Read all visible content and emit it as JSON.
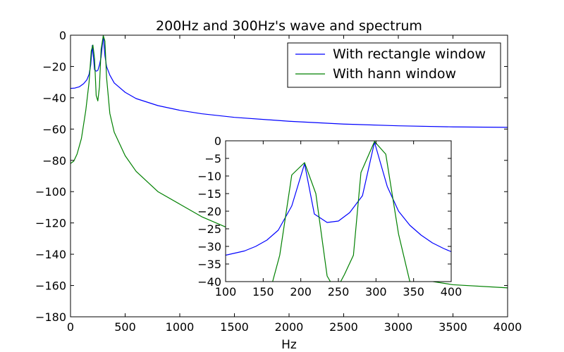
{
  "chart_data": [
    {
      "type": "line",
      "title": "200Hz and 300Hz's wave and spectrum",
      "xlabel": "Hz",
      "ylabel": "",
      "xlim": [
        0,
        4000
      ],
      "ylim": [
        -180,
        0
      ],
      "xticks": [
        "0",
        "500",
        "1000",
        "1500",
        "2000",
        "2500",
        "3000",
        "3500",
        "4000"
      ],
      "yticks": [
        "0",
        "−20",
        "−40",
        "−60",
        "−80",
        "−100",
        "−120",
        "−140",
        "−160",
        "−180"
      ],
      "legend_position": "top-right",
      "series": [
        {
          "name": "With rectangle window",
          "color": "#0000ff",
          "points": [
            [
              0,
              -34
            ],
            [
              40,
              -33.8
            ],
            [
              80,
              -33
            ],
            [
              120,
              -31
            ],
            [
              150,
              -28.5
            ],
            [
              170,
              -25
            ],
            [
              185,
              -19
            ],
            [
              200,
              -6.5
            ],
            [
              210,
              -14
            ],
            [
              220,
              -22
            ],
            [
              235,
              -23
            ],
            [
              250,
              -22.5
            ],
            [
              265,
              -19
            ],
            [
              280,
              -14
            ],
            [
              300,
              -0.5
            ],
            [
              315,
              -13
            ],
            [
              330,
              -20
            ],
            [
              360,
              -25.5
            ],
            [
              400,
              -30.5
            ],
            [
              500,
              -36.5
            ],
            [
              600,
              -40.5
            ],
            [
              800,
              -45
            ],
            [
              1000,
              -48
            ],
            [
              1200,
              -50.2
            ],
            [
              1500,
              -52.5
            ],
            [
              2000,
              -55
            ],
            [
              2500,
              -56.8
            ],
            [
              3000,
              -57.9
            ],
            [
              3500,
              -58.6
            ],
            [
              4000,
              -58.9
            ]
          ]
        },
        {
          "name": "With hann window",
          "color": "#008000",
          "points": [
            [
              0,
              -82
            ],
            [
              30,
              -80.5
            ],
            [
              60,
              -76
            ],
            [
              100,
              -66
            ],
            [
              140,
              -48
            ],
            [
              170,
              -30
            ],
            [
              190,
              -10
            ],
            [
              205,
              -6.3
            ],
            [
              220,
              -15
            ],
            [
              235,
              -38.5
            ],
            [
              250,
              -42
            ],
            [
              265,
              -33
            ],
            [
              280,
              -9
            ],
            [
              300,
              -0.3
            ],
            [
              315,
              -3.8
            ],
            [
              330,
              -27
            ],
            [
              360,
              -50
            ],
            [
              400,
              -62
            ],
            [
              500,
              -77
            ],
            [
              600,
              -87
            ],
            [
              800,
              -100
            ],
            [
              1000,
              -108
            ],
            [
              1200,
              -116
            ],
            [
              1500,
              -125
            ],
            [
              2000,
              -136
            ],
            [
              2500,
              -146
            ],
            [
              3000,
              -154
            ],
            [
              3500,
              -159.5
            ],
            [
              4000,
              -161.5
            ]
          ]
        }
      ]
    },
    {
      "type": "line",
      "title": "",
      "xlabel": "",
      "ylabel": "",
      "xlim": [
        100,
        400
      ],
      "ylim": [
        -40,
        0
      ],
      "xticks": [
        "100",
        "150",
        "200",
        "250",
        "300",
        "350",
        "400"
      ],
      "yticks": [
        "0",
        "−5",
        "−10",
        "−15",
        "−20",
        "−25",
        "−30",
        "−35",
        "−40"
      ],
      "series": [
        {
          "color": "#0000ff",
          "points": [
            [
              100,
              -32.5
            ],
            [
              125,
              -31.3
            ],
            [
              140,
              -30
            ],
            [
              155,
              -28.2
            ],
            [
              170,
              -25.4
            ],
            [
              188,
              -18.5
            ],
            [
              205,
              -6.5
            ],
            [
              218,
              -20.8
            ],
            [
              235,
              -23.2
            ],
            [
              250,
              -22.8
            ],
            [
              265,
              -20.4
            ],
            [
              282,
              -15.6
            ],
            [
              298,
              -0.4
            ],
            [
              315,
              -13
            ],
            [
              330,
              -20
            ],
            [
              345,
              -24
            ],
            [
              360,
              -26.8
            ],
            [
              375,
              -29
            ],
            [
              390,
              -30.6
            ],
            [
              400,
              -31.5
            ]
          ]
        },
        {
          "color": "#008000",
          "points": [
            [
              155,
              -45
            ],
            [
              160,
              -42
            ],
            [
              172,
              -32.5
            ],
            [
              188,
              -9.7
            ],
            [
              205,
              -6.2
            ],
            [
              220,
              -15
            ],
            [
              235,
              -38.4
            ],
            [
              242,
              -41
            ],
            [
              248,
              -42
            ],
            [
              258,
              -38
            ],
            [
              270,
              -32.5
            ],
            [
              280,
              -9
            ],
            [
              298,
              -0.2
            ],
            [
              313,
              -3.8
            ],
            [
              330,
              -26.5
            ],
            [
              345,
              -40
            ],
            [
              350,
              -45
            ]
          ]
        }
      ]
    }
  ]
}
